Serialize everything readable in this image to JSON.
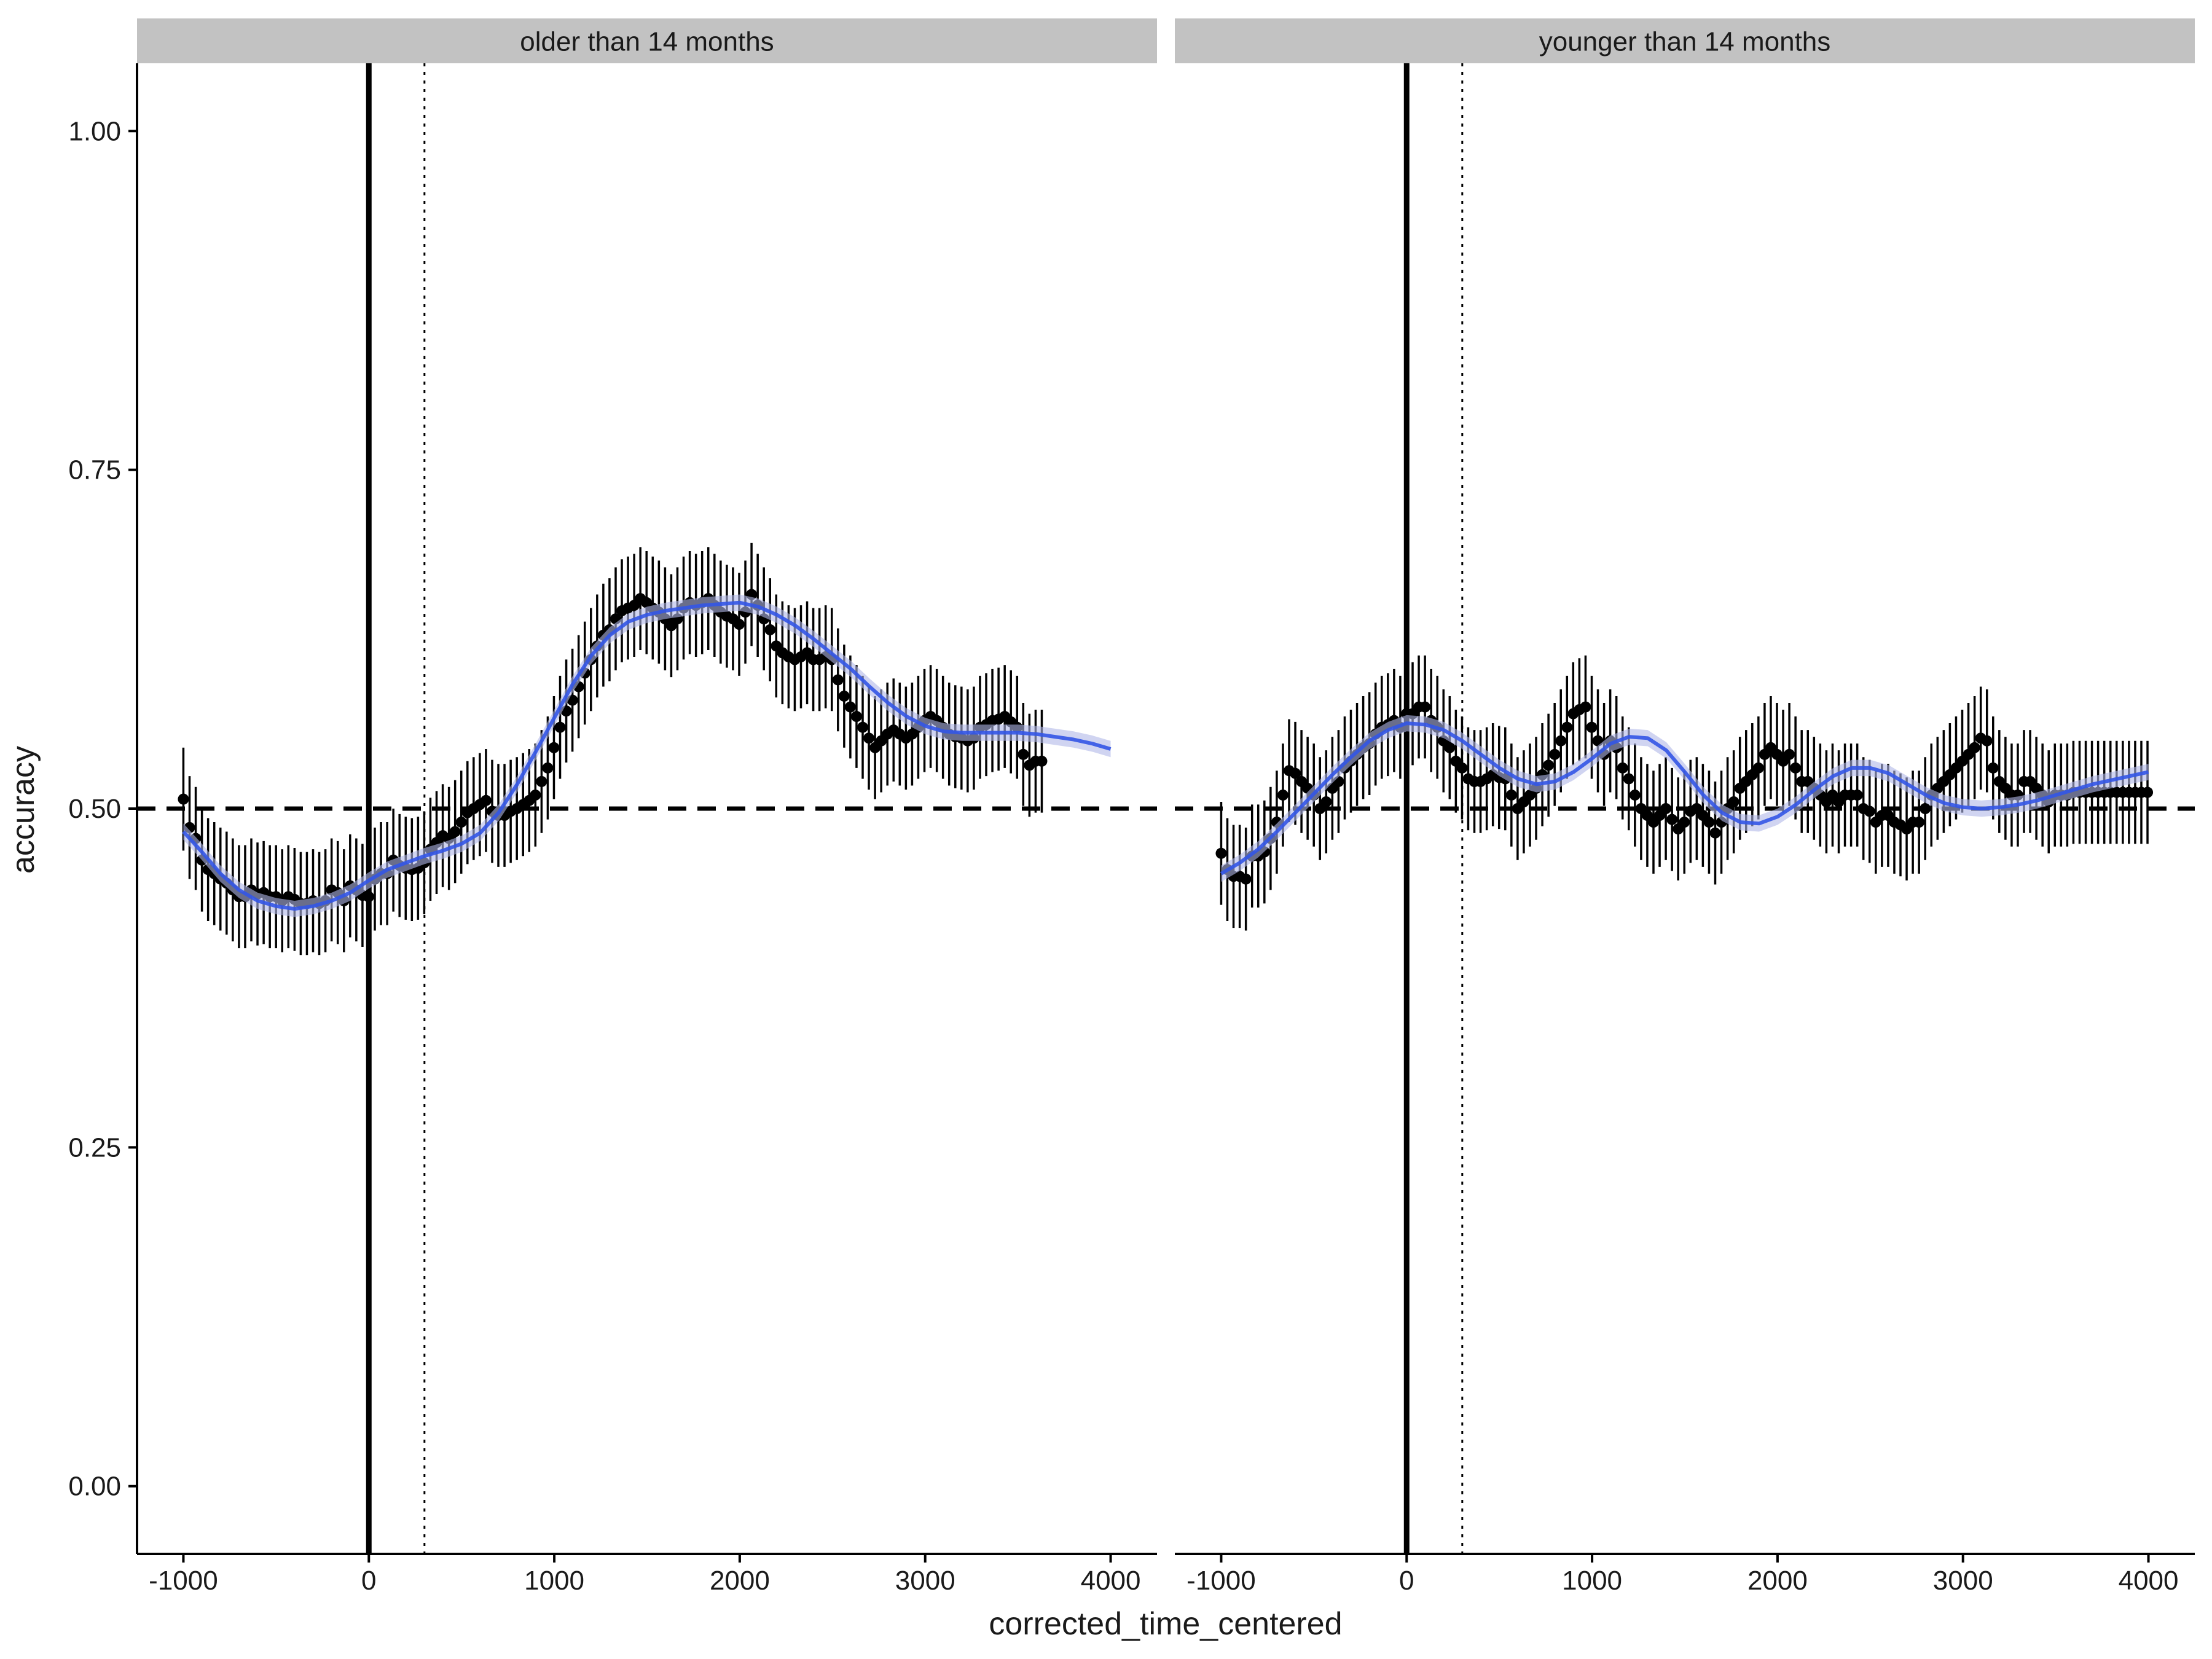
{
  "chart_data": {
    "type": "scatter",
    "xlabel": "corrected_time_centered",
    "ylabel": "accuracy",
    "xlim": [
      -1250,
      4250
    ],
    "ylim": [
      -0.05,
      1.05
    ],
    "x_ticks": [
      -1000,
      0,
      1000,
      2000,
      3000,
      4000
    ],
    "y_ticks": [
      0.0,
      0.25,
      0.5,
      0.75,
      1.0
    ],
    "y_tick_labels": [
      "0.00",
      "0.25",
      "0.50",
      "0.75",
      "1.00"
    ],
    "reference_lines": [
      {
        "orientation": "horizontal",
        "value": 0.5,
        "style": "dashed"
      },
      {
        "orientation": "vertical",
        "value": 0,
        "style": "solid"
      },
      {
        "orientation": "vertical",
        "value": 300,
        "style": "dotted"
      }
    ],
    "grid": false,
    "legend": "none",
    "colors": {
      "points": "#000000",
      "smooth": "#3355e6",
      "smooth_band": "#b0b8e8",
      "strip": "#c2c2c2"
    },
    "panels": [
      {
        "strip_label": "older than 14 months",
        "x_start": -1000,
        "x_step": 33.3,
        "values": [
          0.507,
          0.486,
          0.478,
          0.462,
          0.455,
          0.452,
          0.448,
          0.445,
          0.44,
          0.435,
          0.435,
          0.44,
          0.437,
          0.438,
          0.435,
          0.435,
          0.432,
          0.435,
          0.433,
          0.43,
          0.43,
          0.432,
          0.43,
          0.432,
          0.44,
          0.438,
          0.432,
          0.443,
          0.44,
          0.436,
          0.435,
          0.448,
          0.452,
          0.452,
          0.462,
          0.458,
          0.456,
          0.455,
          0.456,
          0.46,
          0.47,
          0.475,
          0.48,
          0.478,
          0.483,
          0.49,
          0.497,
          0.5,
          0.503,
          0.506,
          0.498,
          0.495,
          0.495,
          0.498,
          0.5,
          0.503,
          0.506,
          0.51,
          0.52,
          0.53,
          0.545,
          0.56,
          0.572,
          0.58,
          0.59,
          0.6,
          0.61,
          0.62,
          0.628,
          0.632,
          0.64,
          0.646,
          0.648,
          0.65,
          0.655,
          0.652,
          0.648,
          0.645,
          0.64,
          0.635,
          0.64,
          0.648,
          0.652,
          0.65,
          0.652,
          0.655,
          0.65,
          0.645,
          0.642,
          0.64,
          0.636,
          0.645,
          0.658,
          0.65,
          0.64,
          0.632,
          0.62,
          0.615,
          0.612,
          0.61,
          0.612,
          0.615,
          0.61,
          0.61,
          0.612,
          0.61,
          0.595,
          0.583,
          0.575,
          0.568,
          0.56,
          0.552,
          0.545,
          0.55,
          0.555,
          0.558,
          0.555,
          0.552,
          0.555,
          0.56,
          0.565,
          0.568,
          0.565,
          0.56,
          0.555,
          0.553,
          0.552,
          0.55,
          0.552,
          0.56,
          0.562,
          0.565,
          0.566,
          0.568,
          0.564,
          0.56,
          0.54,
          0.532,
          0.535,
          0.535
        ],
        "error_half_width": 0.038,
        "smooth": {
          "x": [
            -1000,
            -900,
            -800,
            -700,
            -600,
            -500,
            -400,
            -300,
            -200,
            -100,
            0,
            100,
            200,
            300,
            400,
            500,
            600,
            700,
            800,
            900,
            1000,
            1100,
            1200,
            1300,
            1400,
            1500,
            1600,
            1700,
            1800,
            1900,
            2000,
            2100,
            2200,
            2300,
            2400,
            2500,
            2600,
            2700,
            2800,
            2900,
            3000,
            3100,
            3200,
            3300,
            3400,
            3500,
            3600,
            3700,
            3800,
            3900,
            4000
          ],
          "y": [
            0.483,
            0.468,
            0.452,
            0.44,
            0.432,
            0.428,
            0.426,
            0.428,
            0.432,
            0.438,
            0.447,
            0.455,
            0.46,
            0.465,
            0.469,
            0.474,
            0.482,
            0.497,
            0.518,
            0.542,
            0.567,
            0.592,
            0.613,
            0.628,
            0.638,
            0.643,
            0.646,
            0.648,
            0.65,
            0.651,
            0.652,
            0.649,
            0.643,
            0.635,
            0.625,
            0.614,
            0.603,
            0.59,
            0.578,
            0.568,
            0.561,
            0.557,
            0.556,
            0.556,
            0.556,
            0.556,
            0.555,
            0.553,
            0.551,
            0.548,
            0.544
          ]
        }
      },
      {
        "strip_label": "younger than 14 months",
        "x_start": -1000,
        "x_step": 33.3,
        "values": [
          0.467,
          0.455,
          0.45,
          0.45,
          0.448,
          0.465,
          0.465,
          0.468,
          0.478,
          0.49,
          0.51,
          0.528,
          0.526,
          0.52,
          0.515,
          0.51,
          0.5,
          0.505,
          0.515,
          0.52,
          0.53,
          0.535,
          0.54,
          0.545,
          0.548,
          0.555,
          0.56,
          0.562,
          0.565,
          0.56,
          0.57,
          0.57,
          0.575,
          0.575,
          0.565,
          0.56,
          0.55,
          0.545,
          0.535,
          0.53,
          0.522,
          0.52,
          0.52,
          0.522,
          0.525,
          0.523,
          0.522,
          0.51,
          0.5,
          0.505,
          0.51,
          0.515,
          0.525,
          0.532,
          0.54,
          0.55,
          0.56,
          0.57,
          0.573,
          0.575,
          0.56,
          0.55,
          0.54,
          0.55,
          0.545,
          0.53,
          0.522,
          0.51,
          0.5,
          0.495,
          0.49,
          0.495,
          0.5,
          0.492,
          0.485,
          0.49,
          0.498,
          0.5,
          0.495,
          0.49,
          0.482,
          0.49,
          0.5,
          0.505,
          0.515,
          0.52,
          0.525,
          0.53,
          0.54,
          0.545,
          0.54,
          0.535,
          0.54,
          0.53,
          0.52,
          0.52,
          0.515,
          0.51,
          0.505,
          0.51,
          0.505,
          0.51,
          0.51,
          0.51,
          0.5,
          0.498,
          0.49,
          0.495,
          0.495,
          0.49,
          0.488,
          0.485,
          0.49,
          0.49,
          0.5,
          0.51,
          0.515,
          0.52,
          0.525,
          0.53,
          0.535,
          0.54,
          0.545,
          0.552,
          0.55,
          0.53,
          0.52,
          0.515,
          0.51,
          0.51,
          0.52,
          0.52,
          0.515,
          0.51,
          0.505,
          0.51,
          0.51,
          0.51,
          0.512,
          0.512,
          0.512,
          0.512,
          0.512,
          0.512,
          0.512,
          0.512,
          0.512,
          0.512,
          0.512,
          0.512,
          0.512
        ],
        "error_half_width": 0.038,
        "smooth": {
          "x": [
            -1000,
            -900,
            -800,
            -700,
            -600,
            -500,
            -400,
            -300,
            -200,
            -100,
            0,
            100,
            200,
            300,
            400,
            500,
            600,
            700,
            800,
            900,
            1000,
            1100,
            1200,
            1300,
            1400,
            1500,
            1600,
            1700,
            1800,
            1900,
            2000,
            2100,
            2200,
            2300,
            2400,
            2500,
            2600,
            2700,
            2800,
            2900,
            3000,
            3100,
            3200,
            3300,
            3400,
            3500,
            3600,
            3700,
            3800,
            3900,
            4000
          ],
          "y": [
            0.452,
            0.46,
            0.47,
            0.483,
            0.497,
            0.511,
            0.525,
            0.538,
            0.55,
            0.558,
            0.563,
            0.562,
            0.558,
            0.55,
            0.54,
            0.53,
            0.522,
            0.518,
            0.52,
            0.527,
            0.537,
            0.548,
            0.553,
            0.552,
            0.543,
            0.527,
            0.51,
            0.497,
            0.49,
            0.489,
            0.494,
            0.503,
            0.514,
            0.524,
            0.53,
            0.53,
            0.526,
            0.518,
            0.51,
            0.504,
            0.501,
            0.5,
            0.501,
            0.503,
            0.506,
            0.51,
            0.514,
            0.518,
            0.521,
            0.524,
            0.527
          ]
        }
      }
    ]
  }
}
